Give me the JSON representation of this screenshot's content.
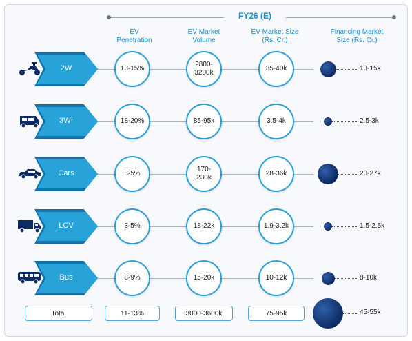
{
  "header": {
    "title": "FY26 (E)"
  },
  "columns": {
    "penetration": "EV\nPenetration",
    "volume": "EV Market\nVolume",
    "size": "EV Market Size\n(Rs. Cr.)",
    "financing": "Financing Market\nSize (Rs. Cr.)"
  },
  "rows": [
    {
      "segment": "2W",
      "icon": "scooter-icon",
      "penetration": "13-15%",
      "volume": "2800-\n3200k",
      "size": "35-40k",
      "financing": "13-15k",
      "financing_mid": 14
    },
    {
      "segment": "3W",
      "segment_sup": "1",
      "icon": "auto-rickshaw-icon",
      "penetration": "18-20%",
      "volume": "85-95k",
      "size": "3.5-4k",
      "financing": "2.5-3k",
      "financing_mid": 2.75
    },
    {
      "segment": "Cars",
      "icon": "car-icon",
      "penetration": "3-5%",
      "volume": "170-\n230k",
      "size": "28-36k",
      "financing": "20-27k",
      "financing_mid": 23.5
    },
    {
      "segment": "LCV",
      "icon": "truck-icon",
      "penetration": "3-5%",
      "volume": "18-22k",
      "size": "1.9-3.2k",
      "financing": "1.5-2.5k",
      "financing_mid": 2
    },
    {
      "segment": "Bus",
      "icon": "bus-icon",
      "penetration": "8-9%",
      "volume": "15-20k",
      "size": "10-12k",
      "financing": "8-10k",
      "financing_mid": 9
    }
  ],
  "total": {
    "label": "Total",
    "penetration": "11-13%",
    "volume": "3000-3600k",
    "size": "75-95k",
    "financing": "45-55k",
    "financing_mid": 50
  },
  "colors": {
    "accent": "#27a3da",
    "accent_dark": "#1571a6",
    "bubble": "#0e2a63",
    "circle_border": "#2a9fd8"
  }
}
